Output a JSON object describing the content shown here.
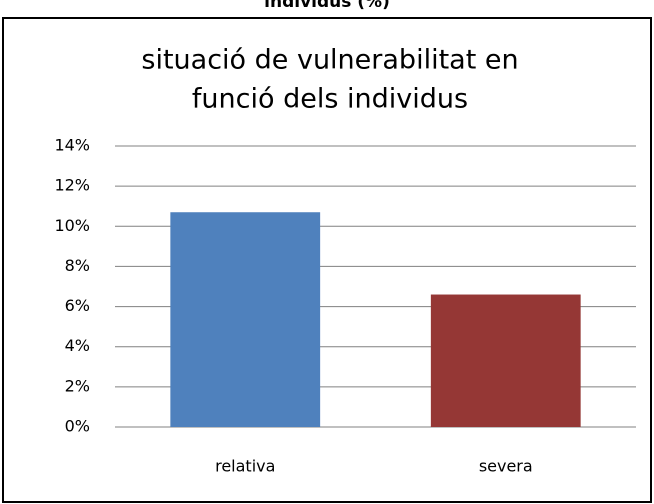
{
  "caption": "individus (%)",
  "chart_data": {
    "type": "bar",
    "title": [
      "situació de vulnerabilitat en",
      "funció dels individus"
    ],
    "categories": [
      "relativa",
      "severa"
    ],
    "values": [
      10.7,
      6.6
    ],
    "colors": [
      "#4f81bd",
      "#953735"
    ],
    "ylim": [
      0,
      14
    ],
    "yticks": [
      {
        "value": 0,
        "label": "0%"
      },
      {
        "value": 2,
        "label": "2%"
      },
      {
        "value": 4,
        "label": "4%"
      },
      {
        "value": 6,
        "label": "6%"
      },
      {
        "value": 8,
        "label": "8%"
      },
      {
        "value": 10,
        "label": "10%"
      },
      {
        "value": 12,
        "label": "12%"
      },
      {
        "value": 14,
        "label": "14%"
      }
    ],
    "grid": true
  }
}
